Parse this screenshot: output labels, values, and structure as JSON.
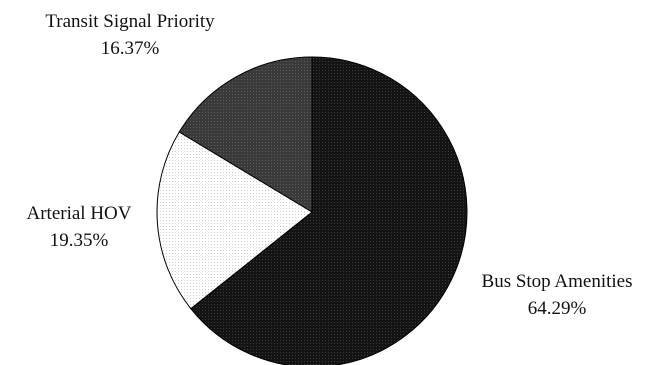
{
  "chart_data": {
    "type": "pie",
    "title": "",
    "slices": [
      {
        "label": "Bus Stop Amenities",
        "value": 64.29,
        "value_label": "64.29%",
        "color": "#141414"
      },
      {
        "label": "Arterial HOV",
        "value": 19.35,
        "value_label": "19.35%",
        "color": "#f2f2f2"
      },
      {
        "label": "Transit Signal Priority",
        "value": 16.37,
        "value_label": "16.37%",
        "color": "#3a3a3a"
      }
    ],
    "start_angle_deg": 0,
    "direction": "clockwise",
    "legend": "none"
  }
}
